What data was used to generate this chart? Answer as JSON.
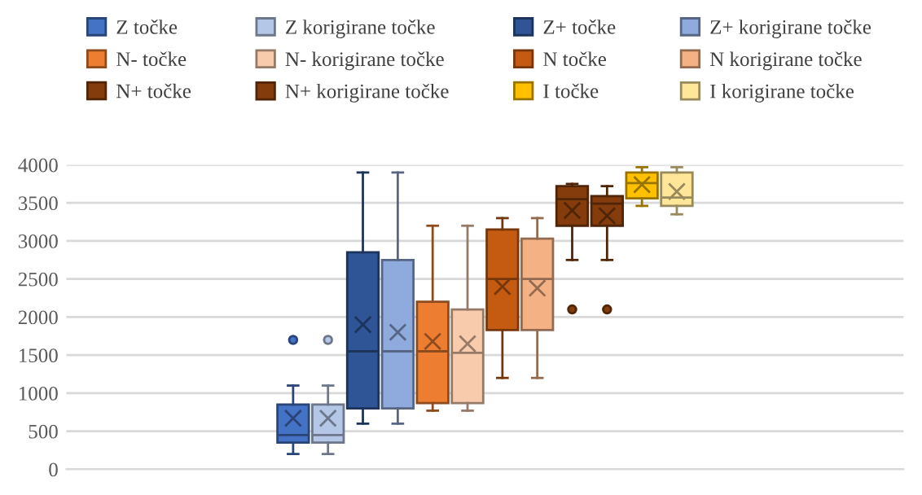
{
  "chart_data": {
    "type": "box",
    "categories": [
      null
    ],
    "ylim": [
      0,
      4000
    ],
    "yticks": [
      0,
      500,
      1000,
      1500,
      2000,
      2500,
      3000,
      3500,
      4000
    ],
    "grid": "y",
    "legend": "top",
    "tick_labels": "y",
    "series": [
      {
        "name": "Z točke",
        "color": "#4472c4",
        "boxes": [
          {
            "low": 200,
            "q1": 350,
            "median": 450,
            "q3": 850,
            "high": 1100,
            "mean": 670,
            "outliers": [
              1700
            ]
          }
        ]
      },
      {
        "name": "Z korigirane točke",
        "color": "#b4c7e7",
        "boxes": [
          {
            "low": 200,
            "q1": 350,
            "median": 450,
            "q3": 850,
            "high": 1100,
            "mean": 670,
            "outliers": [
              1700
            ]
          }
        ]
      },
      {
        "name": "Z+ točke",
        "color": "#2f5597",
        "boxes": [
          {
            "low": 600,
            "q1": 800,
            "median": 1550,
            "q3": 2850,
            "high": 3900,
            "mean": 1900
          }
        ]
      },
      {
        "name": "Z+ korigirane točke",
        "color": "#8faadc",
        "boxes": [
          {
            "low": 600,
            "q1": 800,
            "median": 1550,
            "q3": 2750,
            "high": 3900,
            "mean": 1800
          }
        ]
      },
      {
        "name": "N- točke",
        "color": "#ed7d31",
        "boxes": [
          {
            "low": 770,
            "q1": 870,
            "median": 1550,
            "q3": 2200,
            "high": 3200,
            "mean": 1680
          }
        ]
      },
      {
        "name": "N- korigirane točke",
        "color": "#f8cbad",
        "boxes": [
          {
            "low": 770,
            "q1": 870,
            "median": 1530,
            "q3": 2100,
            "high": 3200,
            "mean": 1650
          }
        ]
      },
      {
        "name": "N točke",
        "color": "#c55a11",
        "boxes": [
          {
            "low": 1200,
            "q1": 1830,
            "median": 2500,
            "q3": 3150,
            "high": 3300,
            "mean": 2400
          }
        ]
      },
      {
        "name": "N korigirane točke",
        "color": "#f4b183",
        "boxes": [
          {
            "low": 1200,
            "q1": 1830,
            "median": 2500,
            "q3": 3030,
            "high": 3300,
            "mean": 2380
          }
        ]
      },
      {
        "name": "N+ točke",
        "color": "#843c0c",
        "boxes": [
          {
            "low": 2750,
            "q1": 3200,
            "median": 3550,
            "q3": 3720,
            "high": 3750,
            "mean": 3400,
            "outliers": [
              2100
            ]
          }
        ]
      },
      {
        "name": "N+ korigirane točke",
        "color": "#843c0c",
        "boxes": [
          {
            "low": 2750,
            "q1": 3200,
            "median": 3490,
            "q3": 3590,
            "high": 3720,
            "mean": 3330,
            "outliers": [
              2100
            ]
          }
        ]
      },
      {
        "name": "I točke",
        "color": "#ffc000",
        "boxes": [
          {
            "low": 3460,
            "q1": 3560,
            "median": 3760,
            "q3": 3900,
            "high": 3970,
            "mean": 3740
          }
        ]
      },
      {
        "name": "I korigirane točke",
        "color": "#ffe699",
        "boxes": [
          {
            "low": 3350,
            "q1": 3460,
            "median": 3570,
            "q3": 3900,
            "high": 3970,
            "mean": 3650
          }
        ]
      }
    ]
  }
}
